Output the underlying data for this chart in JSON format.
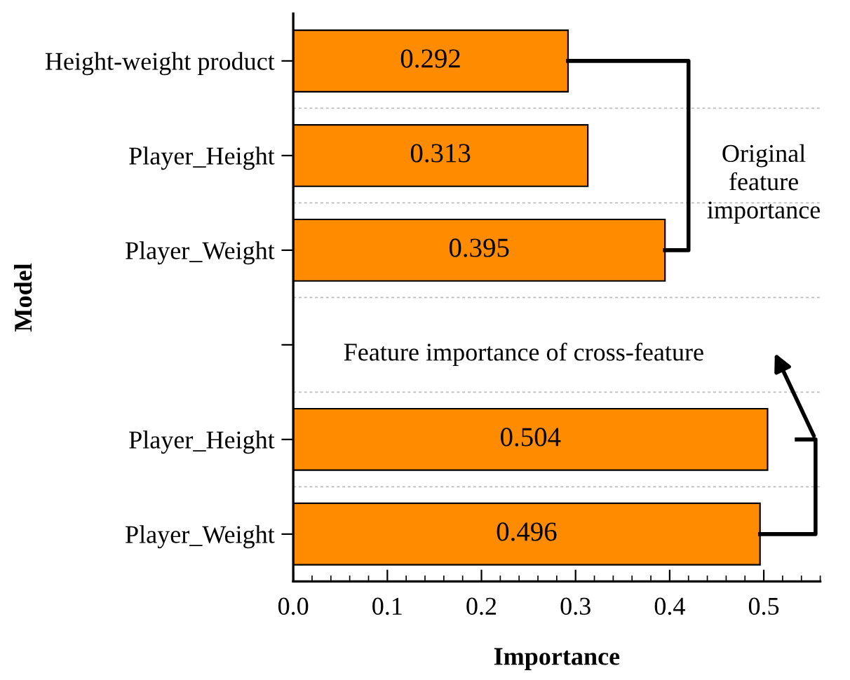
{
  "chart_data": {
    "type": "bar",
    "orientation": "horizontal",
    "xlabel": "Importance",
    "ylabel": "Model",
    "categories": [
      "Height-weight product",
      "Player_Height",
      "Player_Weight",
      null,
      "Player_Height",
      "Player_Weight"
    ],
    "values": [
      0.292,
      0.313,
      0.395,
      null,
      0.504,
      0.496
    ],
    "color": "#ff8c00",
    "data_labels": true,
    "xlim": [
      0,
      0.56
    ],
    "xticks": [
      {
        "value": 0,
        "label": "0.0"
      },
      0.1,
      0.2,
      0.3,
      0.4,
      0.5
    ],
    "grid": "y",
    "legend": false,
    "annotations": [
      "Original\nfeature\nimportance",
      "Feature importance of cross-feature"
    ]
  }
}
